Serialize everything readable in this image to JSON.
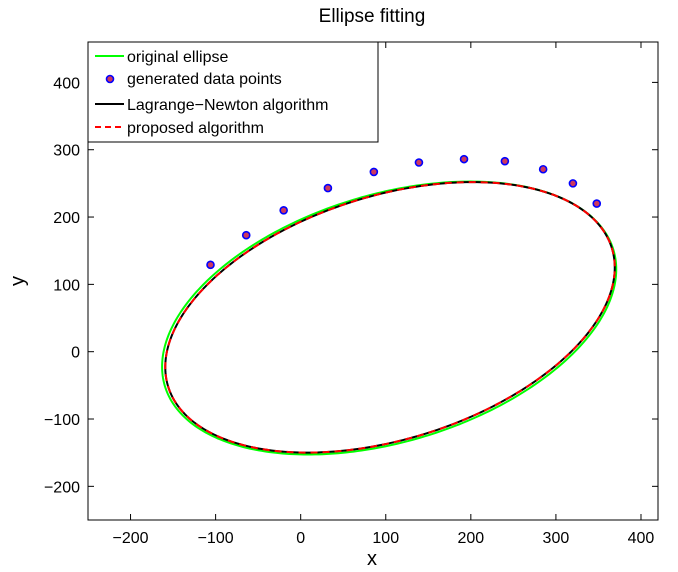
{
  "chart_data": {
    "type": "line",
    "title": "Ellipse fitting",
    "xlabel": "x",
    "ylabel": "y",
    "xlim": [
      -250,
      420
    ],
    "ylim": [
      -250,
      460
    ],
    "xticks": [
      -200,
      -100,
      0,
      100,
      200,
      300,
      400
    ],
    "yticks": [
      -200,
      -100,
      0,
      100,
      200,
      300,
      400
    ],
    "xtick_labels": [
      "−200",
      "−100",
      "0",
      "100",
      "200",
      "300",
      "400"
    ],
    "ytick_labels": [
      "−200",
      "−100",
      "0",
      "100",
      "200",
      "300",
      "400"
    ],
    "grid": false,
    "legend_position": "top-left",
    "series": [
      {
        "name": "original ellipse",
        "style": "solid",
        "color": "#00ff00",
        "ellipse": {
          "cx": 104,
          "cy": 50,
          "a": 284,
          "b": 178,
          "angle_deg": 26
        }
      },
      {
        "name": "generated data points",
        "style": "markers",
        "color": "#0000ff",
        "marker_fill": "#cc3a5e",
        "x": [
          -106,
          -64,
          -20,
          32,
          86,
          139,
          192,
          240,
          285,
          320,
          348
        ],
        "y": [
          129,
          173,
          210,
          243,
          267,
          281,
          286,
          283,
          271,
          250,
          220
        ]
      },
      {
        "name": "Lagrange−Newton algorithm",
        "style": "solid",
        "color": "#000000",
        "ellipse": {
          "cx": 105,
          "cy": 51,
          "a": 282,
          "b": 175,
          "angle_deg": 26.5
        }
      },
      {
        "name": "proposed algorithm",
        "style": "dashed",
        "color": "#ff0000",
        "ellipse": {
          "cx": 105,
          "cy": 51,
          "a": 282,
          "b": 175,
          "angle_deg": 26.5
        }
      }
    ]
  }
}
